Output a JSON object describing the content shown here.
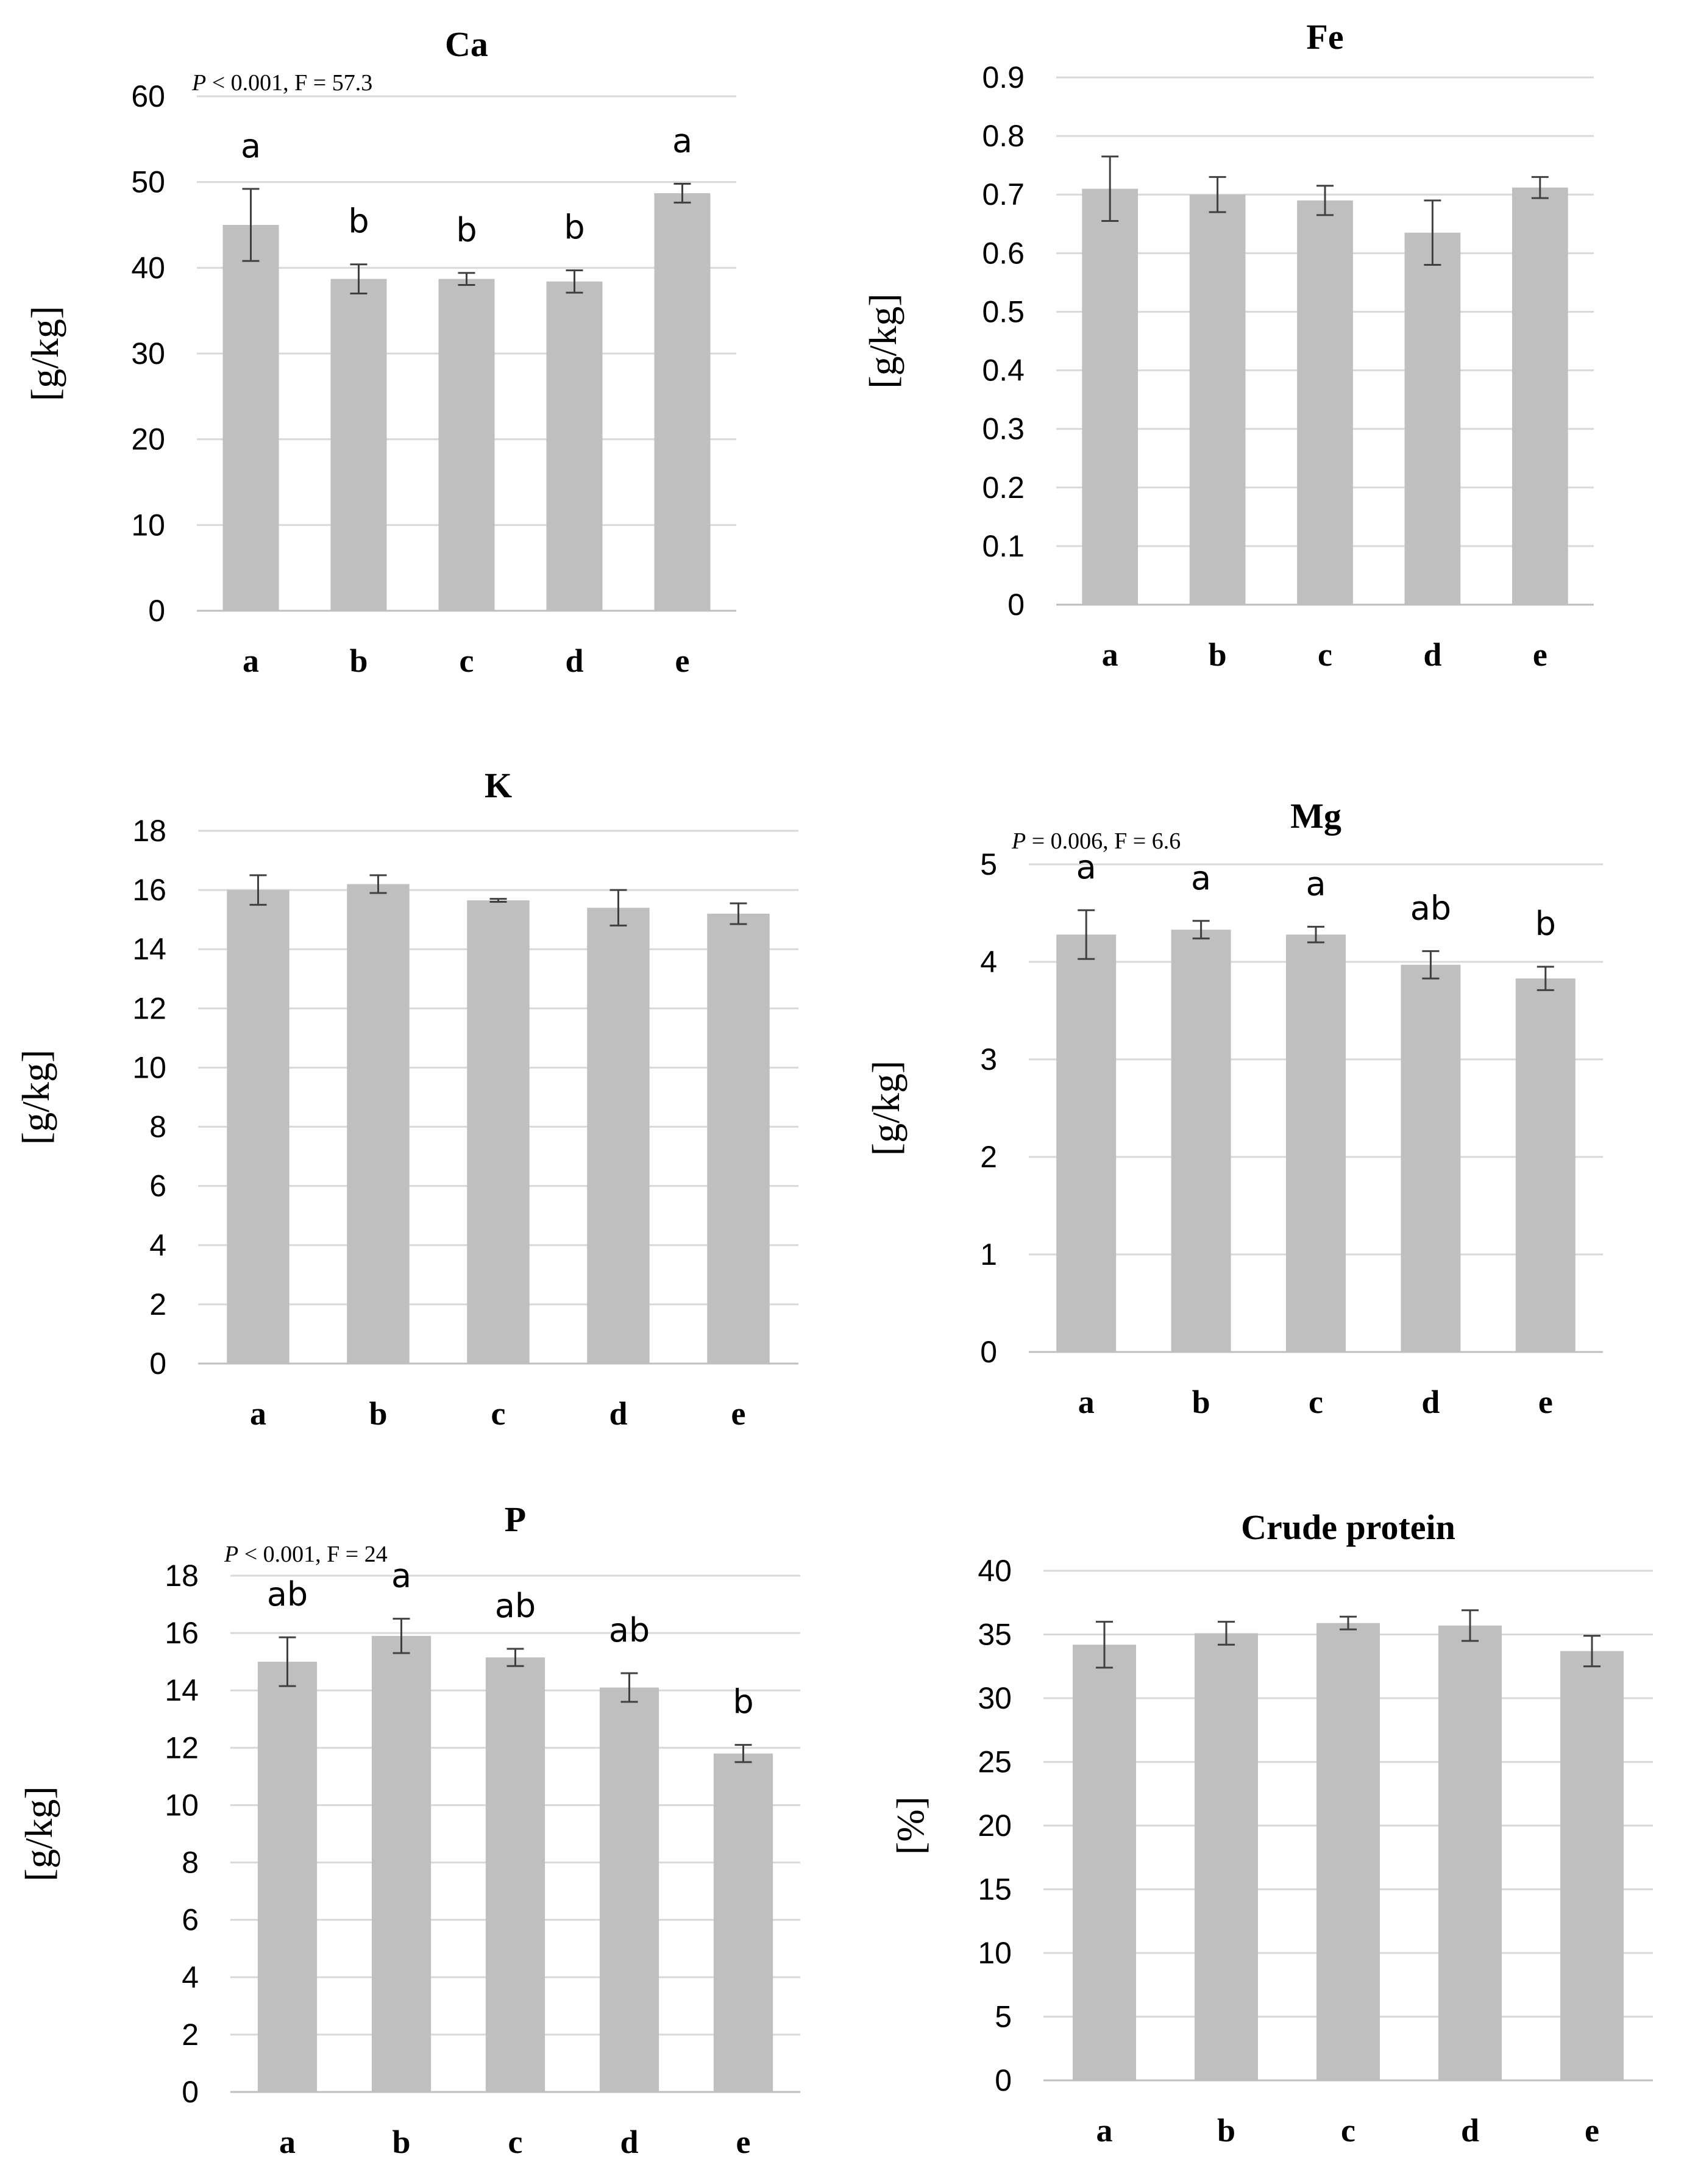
{
  "chart_data": [
    {
      "type": "bar",
      "title": "Ca",
      "ylabel": "[g/kg]",
      "xlabel": "",
      "ylim": [
        0,
        60
      ],
      "yticks": [
        0,
        10,
        20,
        30,
        40,
        50,
        60
      ],
      "categories": [
        "a",
        "b",
        "c",
        "d",
        "e"
      ],
      "values": [
        45,
        38.7,
        38.7,
        38.4,
        48.7
      ],
      "errors": [
        4.2,
        1.7,
        0.7,
        1.3,
        1.1
      ],
      "significance": [
        "a",
        "b",
        "b",
        "b",
        "a"
      ],
      "stat": {
        "p": "P",
        "rest": " < 0.001, F = 57.3"
      }
    },
    {
      "type": "bar",
      "title": "Fe",
      "ylabel": "[g/kg]",
      "xlabel": "",
      "ylim": [
        0,
        0.9
      ],
      "yticks": [
        0,
        0.1,
        0.2,
        0.3,
        0.4,
        0.5,
        0.6,
        0.7,
        0.8,
        0.9
      ],
      "categories": [
        "a",
        "b",
        "c",
        "d",
        "e"
      ],
      "values": [
        0.71,
        0.7,
        0.69,
        0.635,
        0.712
      ],
      "errors": [
        0.055,
        0.03,
        0.025,
        0.055,
        0.018
      ],
      "significance": [],
      "stat": null
    },
    {
      "type": "bar",
      "title": "K",
      "ylabel": "[g/kg]",
      "xlabel": "",
      "ylim": [
        0,
        18
      ],
      "yticks": [
        0,
        2,
        4,
        6,
        8,
        10,
        12,
        14,
        16,
        18
      ],
      "categories": [
        "a",
        "b",
        "c",
        "d",
        "e"
      ],
      "values": [
        16.0,
        16.2,
        15.65,
        15.4,
        15.2
      ],
      "errors": [
        0.5,
        0.3,
        0.05,
        0.6,
        0.35
      ],
      "significance": [],
      "stat": null
    },
    {
      "type": "bar",
      "title": "Mg",
      "ylabel": "[g/kg]",
      "xlabel": "",
      "ylim": [
        0,
        5
      ],
      "yticks": [
        0,
        1,
        2,
        3,
        4,
        5
      ],
      "categories": [
        "a",
        "b",
        "c",
        "d",
        "e"
      ],
      "values": [
        4.28,
        4.33,
        4.28,
        3.97,
        3.83
      ],
      "errors": [
        0.25,
        0.09,
        0.08,
        0.14,
        0.12
      ],
      "significance": [
        "a",
        "a",
        "a",
        "ab",
        "b"
      ],
      "stat": {
        "p": "P",
        "rest": " = 0.006, F = 6.6"
      }
    },
    {
      "type": "bar",
      "title": "P",
      "ylabel": "[g/kg]",
      "xlabel": "",
      "ylim": [
        0,
        18
      ],
      "yticks": [
        0,
        2,
        4,
        6,
        8,
        10,
        12,
        14,
        16,
        18
      ],
      "categories": [
        "a",
        "b",
        "c",
        "d",
        "e"
      ],
      "values": [
        15.0,
        15.9,
        15.15,
        14.1,
        11.8
      ],
      "errors": [
        0.85,
        0.6,
        0.3,
        0.5,
        0.3
      ],
      "significance": [
        "ab",
        "a",
        "ab",
        "ab",
        "b"
      ],
      "stat": {
        "p": "P",
        "rest": " < 0.001, F = 24"
      }
    },
    {
      "type": "bar",
      "title": "Crude protein",
      "ylabel": "[%]",
      "xlabel": "",
      "ylim": [
        0,
        40
      ],
      "yticks": [
        0,
        5,
        10,
        15,
        20,
        25,
        30,
        35,
        40
      ],
      "categories": [
        "a",
        "b",
        "c",
        "d",
        "e"
      ],
      "values": [
        34.2,
        35.1,
        35.9,
        35.7,
        33.7
      ],
      "errors": [
        1.8,
        0.9,
        0.5,
        1.2,
        1.2
      ],
      "significance": [],
      "stat": null
    }
  ]
}
